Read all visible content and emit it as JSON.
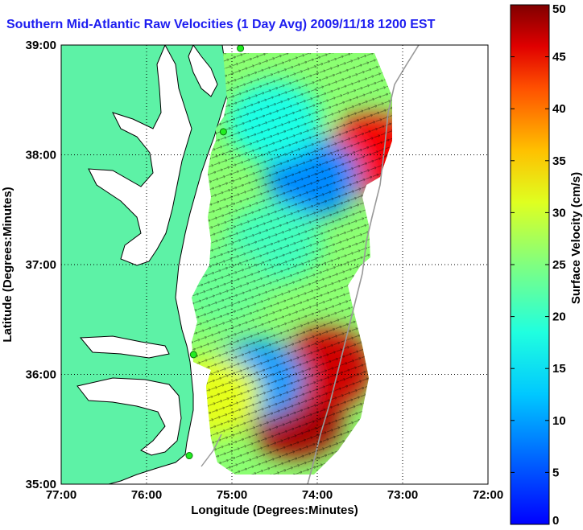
{
  "title": "Southern Mid-Atlantic Raw Velocities (1 Day Avg) 2009/11/18 1200 EST",
  "chart_data": {
    "type": "heatmap",
    "title": "Southern Mid-Atlantic Raw Velocities (1 Day Avg) 2009/11/18 1200 EST",
    "xlabel": "Longitude (Degrees:Minutes)",
    "ylabel": "Latitude (Degrees:Minutes)",
    "colorbar_label": "Surface Velocity (cm/s)",
    "xlim": [
      -77,
      -72
    ],
    "ylim": [
      35,
      39
    ],
    "clim": [
      0,
      50
    ],
    "x_tick_labels": [
      "77:00",
      "76:00",
      "75:00",
      "74:00",
      "73:00",
      "72:00"
    ],
    "y_tick_labels": [
      "39:00",
      "38:00",
      "37:00",
      "36:00",
      "35:00"
    ],
    "colorbar_ticks": [
      "50",
      "45",
      "40",
      "35",
      "30",
      "25",
      "20",
      "15",
      "10",
      "5",
      "0"
    ],
    "colorbar_tick_values": [
      50,
      45,
      40,
      35,
      30,
      25,
      20,
      15,
      10,
      5,
      0
    ],
    "grid": true,
    "colormap": "jet",
    "land_color": "#5df2a6",
    "coast_color": "#000000",
    "velocity_regions": [
      {
        "lon": -74.25,
        "lat": 35.6,
        "speed": 48
      },
      {
        "lon": -73.9,
        "lat": 36.05,
        "speed": 46
      },
      {
        "lon": -73.35,
        "lat": 38.0,
        "speed": 44
      },
      {
        "lon": -74.7,
        "lat": 35.95,
        "speed": 14
      },
      {
        "lon": -74.05,
        "lat": 37.8,
        "speed": 13
      },
      {
        "lon": -74.5,
        "lat": 37.2,
        "speed": 22
      },
      {
        "lon": -74.5,
        "lat": 38.3,
        "speed": 20
      },
      {
        "lon": -75.1,
        "lat": 36.8,
        "speed": 24
      },
      {
        "lon": -75.2,
        "lat": 35.8,
        "speed": 30
      }
    ],
    "stations": [
      {
        "lon": -74.9,
        "lat": 38.97
      },
      {
        "lon": -75.1,
        "lat": 38.21
      },
      {
        "lon": -75.45,
        "lat": 36.18
      },
      {
        "lon": -75.5,
        "lat": 35.26
      }
    ]
  }
}
